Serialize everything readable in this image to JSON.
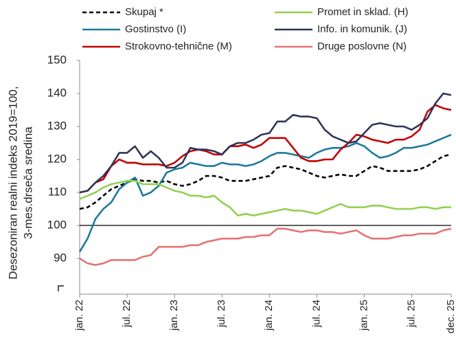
{
  "chart_data": {
    "type": "line",
    "y_label": [
      "Desezoniran realni indeks 2019=100,",
      "3-mes.drseča sredina"
    ],
    "categories": [
      "jan. 22",
      null,
      null,
      null,
      null,
      null,
      "jul. 22",
      null,
      null,
      null,
      null,
      null,
      "jan. 23",
      null,
      null,
      null,
      null,
      null,
      "jul. 23",
      null,
      null,
      null,
      null,
      null,
      "jan. 24",
      null,
      null,
      null,
      null,
      null,
      "jul. 24",
      null,
      null,
      null,
      null,
      null,
      "jan. 25",
      null,
      null,
      null,
      null,
      null,
      "jul. 25",
      null,
      null,
      null,
      null,
      "dec. 25"
    ],
    "ylim": [
      80,
      150
    ],
    "yticks": [
      90,
      100,
      110,
      120,
      130,
      140,
      150
    ],
    "hline": 100,
    "series": [
      {
        "name": "Skupaj *",
        "color": "#000000",
        "dashed": true,
        "values": [
          105,
          105.5,
          107,
          109,
          111,
          112,
          113,
          114,
          113.5,
          113.5,
          113,
          113.5,
          112.5,
          112,
          112.5,
          113.5,
          115,
          115,
          114.5,
          113.5,
          113.5,
          113.5,
          114,
          114.5,
          115,
          117.5,
          118,
          117.5,
          117,
          116,
          115,
          114.5,
          115,
          115.5,
          115,
          115,
          116.5,
          118,
          117.5,
          116.5,
          116.5,
          116.5,
          116.5,
          117,
          118,
          119.5,
          121,
          121.5
        ]
      },
      {
        "name": "Gostinstvo (I)",
        "color": "#1c7a9c",
        "values": [
          92,
          96,
          102,
          105,
          107,
          111,
          113,
          114.5,
          109,
          110,
          112,
          116,
          117,
          117.5,
          119,
          118.5,
          118,
          118,
          119,
          118.5,
          118.5,
          118,
          118.5,
          119.5,
          121,
          122,
          122,
          121.5,
          121,
          120.5,
          122,
          123,
          123.5,
          123.5,
          124,
          125,
          124,
          122,
          120.5,
          121,
          122,
          123.5,
          123.5,
          124,
          124.5,
          125.5,
          126.5,
          127.5
        ]
      },
      {
        "name": "Strokovno-tehnične (M)",
        "color": "#c00000",
        "values": [
          110,
          110.5,
          113,
          114,
          118,
          120,
          119,
          119,
          118.5,
          118.5,
          118.5,
          118,
          119,
          121,
          122.5,
          123,
          122.5,
          121.5,
          121.5,
          124,
          124,
          124.5,
          123.5,
          124.5,
          126.5,
          126.5,
          126.5,
          123.5,
          120.5,
          119.5,
          119.5,
          120,
          120,
          123,
          125,
          127.5,
          127,
          126,
          125.5,
          125,
          126,
          126,
          127,
          129,
          134.5,
          136.5,
          135.5,
          135
        ]
      },
      {
        "name": "Promet in sklad. (H)",
        "color": "#92d050",
        "values": [
          108,
          109,
          110,
          111.5,
          112.5,
          113,
          113.5,
          113.5,
          112.5,
          112.5,
          112.5,
          111.5,
          110.5,
          110,
          109,
          109,
          108.5,
          109,
          107,
          105.5,
          103,
          103.5,
          103,
          103.5,
          104,
          104.5,
          105,
          104.5,
          104.5,
          104,
          103.5,
          104.5,
          105.5,
          106.5,
          105.5,
          105.5,
          105.5,
          106,
          106,
          105.5,
          105,
          105,
          105,
          105.5,
          105.5,
          105,
          105.5,
          105.5
        ]
      },
      {
        "name": "Info. in komunik. (J)",
        "color": "#2e3558",
        "values": [
          110,
          110.5,
          113,
          115,
          118,
          122,
          122,
          124,
          120.5,
          122.5,
          120.5,
          117.5,
          117.5,
          119,
          123.5,
          123,
          123,
          122.5,
          121.5,
          124,
          125,
          125,
          126,
          127.5,
          128,
          131.5,
          131.5,
          133.5,
          133,
          133,
          132.5,
          129,
          127,
          126,
          125,
          125.5,
          128,
          130.5,
          131,
          130.5,
          130,
          130,
          129,
          130.5,
          132.5,
          137,
          140,
          139.5
        ]
      },
      {
        "name": "Druge poslovne (N)",
        "color": "#e57373",
        "values": [
          90,
          88.5,
          88,
          88.5,
          89.5,
          89.5,
          89.5,
          89.5,
          90.5,
          91,
          93.5,
          93.5,
          93.5,
          93.5,
          94,
          94,
          95,
          95.5,
          96,
          96,
          96,
          96.5,
          96.5,
          97,
          97,
          99,
          99,
          98.5,
          98,
          98.5,
          98.5,
          98,
          98,
          97.5,
          98,
          98.5,
          97,
          96,
          96,
          96,
          96.5,
          97,
          97,
          97.5,
          97.5,
          97.5,
          98.5,
          99
        ]
      }
    ]
  }
}
